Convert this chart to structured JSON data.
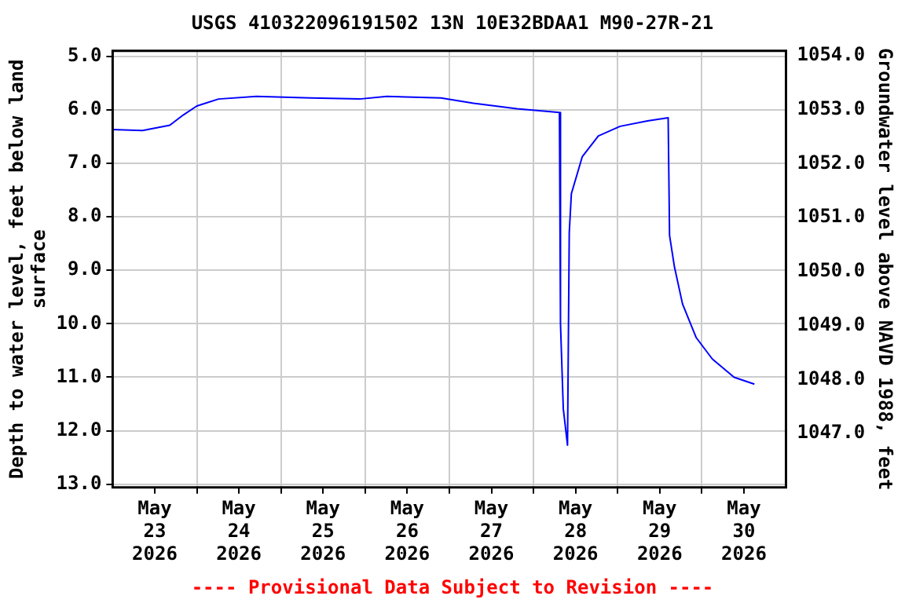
{
  "chart_data": {
    "type": "line",
    "title": "USGS 410322096191502 13N 10E32BDAA1 M90-27R-21",
    "ylabel": "Depth to water level, feet below land surface",
    "y2label": "Groundwater level above NAVD 1988, feet",
    "annotations": [
      "---- Provisional Data Subject to Revision ----"
    ],
    "x": [
      "2026-05-23T00:00",
      "2026-05-23T08:30",
      "2026-05-23T16:18",
      "2026-05-23T20:06",
      "2026-05-24T00:00",
      "2026-05-24T06:12",
      "2026-05-24T17:00",
      "2026-05-25T08:30",
      "2026-05-25T22:24",
      "2026-05-26T06:12",
      "2026-05-26T21:36",
      "2026-05-27T06:54",
      "2026-05-27T19:18",
      "2026-05-28T07:24",
      "2026-05-28T07:42",
      "2026-05-28T08:30",
      "2026-05-28T09:42",
      "2026-05-28T10:12",
      "2026-05-28T10:48",
      "2026-05-28T13:54",
      "2026-05-28T18:30",
      "2026-05-29T00:42",
      "2026-05-29T08:30",
      "2026-05-29T14:24",
      "2026-05-29T14:48",
      "2026-05-29T16:12",
      "2026-05-29T18:30",
      "2026-05-29T22:24",
      "2026-05-30T03:00",
      "2026-05-30T09:12",
      "2026-05-30T15:00"
    ],
    "series": [
      {
        "color": "#0000ff",
        "values": [
          6.37,
          6.39,
          6.29,
          6.1,
          5.93,
          5.8,
          5.75,
          5.78,
          5.8,
          5.75,
          5.78,
          5.88,
          5.98,
          6.05,
          10.0,
          11.59,
          12.27,
          8.3,
          7.57,
          6.88,
          6.49,
          6.31,
          6.21,
          6.15,
          8.35,
          8.94,
          9.63,
          10.26,
          10.66,
          11.0,
          11.13
        ]
      }
    ],
    "xlim": [
      "2026-05-23",
      "2026-05-31"
    ],
    "xticks": [
      {
        "value": "2026-05-23T12:00",
        "label": "May 23 2026"
      },
      {
        "value": "2026-05-24T12:00",
        "label": "May 24 2026"
      },
      {
        "value": "2026-05-25T12:00",
        "label": "May 25 2026"
      },
      {
        "value": "2026-05-26T12:00",
        "label": "May 26 2026"
      },
      {
        "value": "2026-05-27T12:00",
        "label": "May 27 2026"
      },
      {
        "value": "2026-05-28T12:00",
        "label": "May 28 2026"
      },
      {
        "value": "2026-05-29T12:00",
        "label": "May 29 2026"
      },
      {
        "value": "2026-05-30T12:00",
        "label": "May 30 2026"
      },
      {
        "value": "2026-05-24",
        "label": null
      },
      {
        "value": "2026-05-25",
        "label": null
      },
      {
        "value": "2026-05-26",
        "label": null
      },
      {
        "value": "2026-05-27",
        "label": null
      },
      {
        "value": "2026-05-28",
        "label": null
      },
      {
        "value": "2026-05-29",
        "label": null
      },
      {
        "value": "2026-05-30",
        "label": null
      }
    ],
    "ylim": [
      13.06,
      4.9
    ],
    "yticks": [
      {
        "value": 5,
        "label": "5.0"
      },
      {
        "value": 6,
        "label": "6.0"
      },
      {
        "value": 7,
        "label": "7.0"
      },
      {
        "value": 8,
        "label": "8.0"
      },
      {
        "value": 9,
        "label": "9.0"
      },
      {
        "value": 10,
        "label": "10.0"
      },
      {
        "value": 11,
        "label": "11.0"
      },
      {
        "value": 12,
        "label": "12.0"
      },
      {
        "value": 13,
        "label": "13.0"
      }
    ],
    "y2lim": [
      1046.0,
      1054.09
    ],
    "y2ticks": [
      {
        "value": 1047,
        "label": "1047.0"
      },
      {
        "value": 1048,
        "label": "1048.0"
      },
      {
        "value": 1049,
        "label": "1049.0"
      },
      {
        "value": 1050,
        "label": "1050.0"
      },
      {
        "value": 1051,
        "label": "1051.0"
      },
      {
        "value": 1052,
        "label": "1052.0"
      },
      {
        "value": 1053,
        "label": "1053.0"
      },
      {
        "value": 1054,
        "label": "1054.0"
      }
    ],
    "grid": true,
    "legend": false,
    "marker": "none",
    "line_style": "solid"
  }
}
